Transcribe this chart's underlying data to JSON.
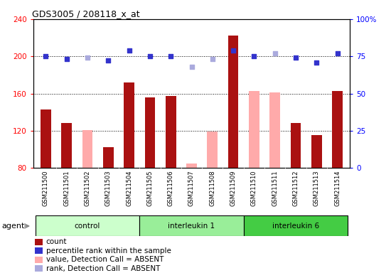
{
  "title": "GDS3005 / 208118_x_at",
  "samples": [
    "GSM211500",
    "GSM211501",
    "GSM211502",
    "GSM211503",
    "GSM211504",
    "GSM211505",
    "GSM211506",
    "GSM211507",
    "GSM211508",
    "GSM211509",
    "GSM211510",
    "GSM211511",
    "GSM211512",
    "GSM211513",
    "GSM211514"
  ],
  "count_values": [
    143,
    128,
    null,
    102,
    172,
    156,
    157,
    null,
    null,
    222,
    null,
    null,
    128,
    115,
    163
  ],
  "absent_value_values": [
    null,
    null,
    121,
    null,
    null,
    null,
    null,
    85,
    119,
    null,
    163,
    161,
    null,
    null,
    null
  ],
  "percentile_rank": [
    75,
    73,
    null,
    72,
    79,
    75,
    75,
    null,
    null,
    79,
    75,
    null,
    74,
    71,
    77
  ],
  "absent_rank_values": [
    null,
    null,
    74,
    null,
    null,
    null,
    null,
    68,
    73,
    null,
    null,
    77,
    null,
    null,
    null
  ],
  "groups": [
    {
      "label": "control",
      "start": 0,
      "end": 4,
      "color": "#ccffcc"
    },
    {
      "label": "interleukin 1",
      "start": 5,
      "end": 9,
      "color": "#99ee99"
    },
    {
      "label": "interleukin 6",
      "start": 10,
      "end": 14,
      "color": "#44cc44"
    }
  ],
  "ylim_left": [
    80,
    240
  ],
  "ylim_right": [
    0,
    100
  ],
  "yticks_left": [
    80,
    120,
    160,
    200,
    240
  ],
  "yticks_right": [
    0,
    25,
    50,
    75,
    100
  ],
  "bar_width": 0.5,
  "count_color": "#aa1111",
  "absent_value_color": "#ffaaaa",
  "rank_color": "#3333cc",
  "absent_rank_color": "#aaaadd",
  "bg_color": "#d8d8d8",
  "plot_bg": "#ffffff"
}
